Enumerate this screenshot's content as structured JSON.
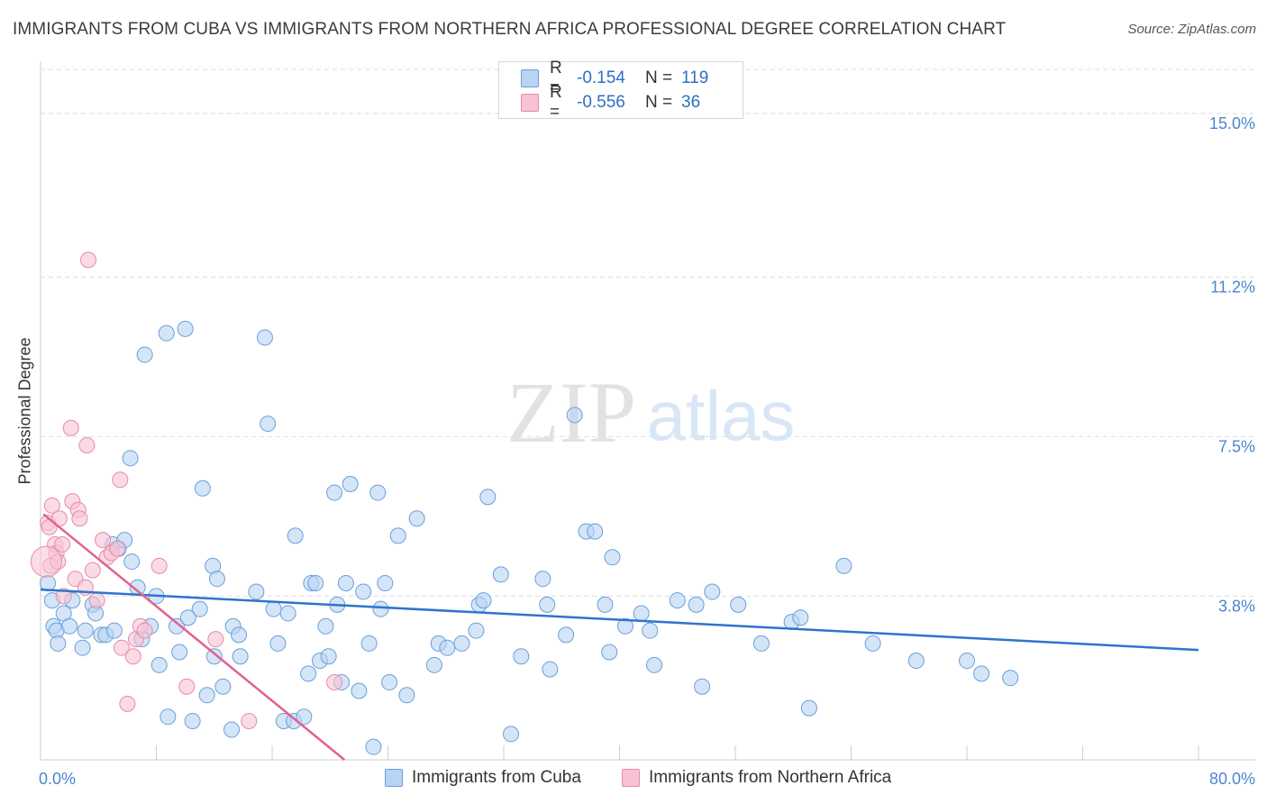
{
  "title": "IMMIGRANTS FROM CUBA VS IMMIGRANTS FROM NORTHERN AFRICA PROFESSIONAL DEGREE CORRELATION CHART",
  "source": "Source: ZipAtlas.com",
  "watermark": {
    "zip": "ZIP",
    "atlas": "atlas"
  },
  "colors": {
    "blue_fill": "#b8d3f3",
    "blue_stroke": "#6a9fd9",
    "blue_line": "#2f74cc",
    "pink_fill": "#f7c3d3",
    "pink_stroke": "#e68aa9",
    "pink_line": "#e0628f",
    "grid": "#dedede",
    "tick_text": "#4a86d0"
  },
  "legend_top": {
    "rows": [
      {
        "r_label": "R =",
        "r_value": "-0.154",
        "n_label": "N =",
        "n_value": "119"
      },
      {
        "r_label": "R =",
        "r_value": "-0.556",
        "n_label": "N =",
        "n_value": "36"
      }
    ]
  },
  "legend_bottom": [
    "Immigrants from Cuba",
    "Immigrants from Northern Africa"
  ],
  "chart_data": {
    "type": "scatter",
    "title": "IMMIGRANTS FROM CUBA VS IMMIGRANTS FROM NORTHERN AFRICA PROFESSIONAL DEGREE CORRELATION CHART",
    "xlabel": "",
    "ylabel": "Professional Degree",
    "xlim": [
      0,
      80
    ],
    "ylim": [
      0,
      16
    ],
    "x_tick_labels": [
      "0.0%",
      "80.0%"
    ],
    "y_ticks": [
      3.8,
      7.5,
      11.2,
      15.0
    ],
    "y_tick_labels": [
      "3.8%",
      "7.5%",
      "11.2%",
      "15.0%"
    ],
    "grid": true,
    "series": [
      {
        "name": "Immigrants from Cuba",
        "color": "#6a9fd9",
        "trend": {
          "x": [
            0,
            80
          ],
          "y": [
            3.95,
            2.55
          ]
        },
        "points": [
          [
            0.5,
            4.1
          ],
          [
            0.8,
            3.7
          ],
          [
            0.9,
            3.1
          ],
          [
            1.1,
            3.0
          ],
          [
            1.2,
            2.7
          ],
          [
            1.6,
            3.4
          ],
          [
            2.0,
            3.1
          ],
          [
            2.2,
            3.7
          ],
          [
            2.9,
            2.6
          ],
          [
            3.1,
            3.0
          ],
          [
            3.6,
            3.6
          ],
          [
            3.8,
            3.4
          ],
          [
            4.2,
            2.9
          ],
          [
            4.5,
            2.9
          ],
          [
            5.0,
            5.0
          ],
          [
            5.1,
            3.0
          ],
          [
            5.4,
            4.9
          ],
          [
            5.8,
            5.1
          ],
          [
            6.2,
            7.0
          ],
          [
            6.3,
            4.6
          ],
          [
            6.7,
            4.0
          ],
          [
            7.0,
            2.8
          ],
          [
            7.2,
            9.4
          ],
          [
            7.6,
            3.1
          ],
          [
            8.0,
            3.8
          ],
          [
            8.2,
            2.2
          ],
          [
            8.7,
            9.9
          ],
          [
            8.8,
            1.0
          ],
          [
            9.4,
            3.1
          ],
          [
            9.6,
            2.5
          ],
          [
            10.0,
            10.0
          ],
          [
            10.2,
            3.3
          ],
          [
            10.5,
            0.9
          ],
          [
            11.0,
            3.5
          ],
          [
            11.2,
            6.3
          ],
          [
            11.5,
            1.5
          ],
          [
            11.9,
            4.5
          ],
          [
            12.0,
            2.4
          ],
          [
            12.2,
            4.2
          ],
          [
            12.6,
            1.7
          ],
          [
            13.2,
            0.7
          ],
          [
            13.3,
            3.1
          ],
          [
            13.7,
            2.9
          ],
          [
            13.8,
            2.4
          ],
          [
            14.9,
            3.9
          ],
          [
            15.5,
            9.8
          ],
          [
            15.7,
            7.8
          ],
          [
            16.1,
            3.5
          ],
          [
            16.4,
            2.7
          ],
          [
            16.8,
            0.9
          ],
          [
            17.1,
            3.4
          ],
          [
            17.5,
            0.9
          ],
          [
            17.6,
            5.2
          ],
          [
            18.2,
            1.0
          ],
          [
            18.5,
            2.0
          ],
          [
            18.7,
            4.1
          ],
          [
            19.0,
            4.1
          ],
          [
            19.3,
            2.3
          ],
          [
            19.7,
            3.1
          ],
          [
            19.9,
            2.4
          ],
          [
            20.3,
            6.2
          ],
          [
            20.5,
            3.6
          ],
          [
            20.8,
            1.8
          ],
          [
            21.1,
            4.1
          ],
          [
            21.4,
            6.4
          ],
          [
            22.0,
            1.6
          ],
          [
            22.3,
            3.9
          ],
          [
            22.7,
            2.7
          ],
          [
            23.0,
            0.3
          ],
          [
            23.3,
            6.2
          ],
          [
            23.5,
            3.5
          ],
          [
            23.8,
            4.1
          ],
          [
            24.1,
            1.8
          ],
          [
            24.7,
            5.2
          ],
          [
            25.3,
            1.5
          ],
          [
            26.0,
            5.6
          ],
          [
            27.2,
            2.2
          ],
          [
            27.5,
            2.7
          ],
          [
            28.1,
            2.6
          ],
          [
            29.1,
            2.7
          ],
          [
            30.1,
            3.0
          ],
          [
            30.3,
            3.6
          ],
          [
            30.6,
            3.7
          ],
          [
            30.9,
            6.1
          ],
          [
            31.8,
            4.3
          ],
          [
            32.5,
            0.6
          ],
          [
            33.2,
            2.4
          ],
          [
            34.7,
            4.2
          ],
          [
            35.0,
            3.6
          ],
          [
            35.2,
            2.1
          ],
          [
            36.3,
            2.9
          ],
          [
            36.9,
            8.0
          ],
          [
            37.7,
            5.3
          ],
          [
            38.3,
            5.3
          ],
          [
            39.0,
            3.6
          ],
          [
            39.3,
            2.5
          ],
          [
            39.5,
            4.7
          ],
          [
            40.4,
            3.1
          ],
          [
            41.5,
            3.4
          ],
          [
            42.1,
            3.0
          ],
          [
            42.4,
            2.2
          ],
          [
            44.0,
            3.7
          ],
          [
            45.3,
            3.6
          ],
          [
            45.7,
            1.7
          ],
          [
            46.4,
            3.9
          ],
          [
            48.2,
            3.6
          ],
          [
            49.8,
            2.7
          ],
          [
            51.9,
            3.2
          ],
          [
            52.5,
            3.3
          ],
          [
            53.1,
            1.2
          ],
          [
            55.5,
            4.5
          ],
          [
            57.5,
            2.7
          ],
          [
            60.5,
            2.3
          ],
          [
            64.0,
            2.3
          ],
          [
            65.0,
            2.0
          ],
          [
            67.0,
            1.9
          ]
        ]
      },
      {
        "name": "Immigrants from Northern Africa",
        "color": "#e68aa9",
        "trend": {
          "x": [
            0.2,
            21.0
          ],
          "y": [
            5.7,
            0.0
          ]
        },
        "points": [
          [
            0.5,
            5.5
          ],
          [
            0.6,
            5.4
          ],
          [
            0.7,
            4.5
          ],
          [
            0.8,
            5.9
          ],
          [
            1.0,
            5.0
          ],
          [
            1.1,
            4.8
          ],
          [
            1.2,
            4.6
          ],
          [
            1.3,
            5.6
          ],
          [
            1.5,
            5.0
          ],
          [
            1.6,
            3.8
          ],
          [
            2.1,
            7.7
          ],
          [
            2.2,
            6.0
          ],
          [
            2.4,
            4.2
          ],
          [
            2.6,
            5.8
          ],
          [
            2.7,
            5.6
          ],
          [
            3.1,
            4.0
          ],
          [
            3.2,
            7.3
          ],
          [
            3.3,
            11.6
          ],
          [
            3.6,
            4.4
          ],
          [
            3.9,
            3.7
          ],
          [
            4.3,
            5.1
          ],
          [
            4.6,
            4.7
          ],
          [
            4.9,
            4.8
          ],
          [
            5.3,
            4.9
          ],
          [
            5.5,
            6.5
          ],
          [
            5.6,
            2.6
          ],
          [
            6.0,
            1.3
          ],
          [
            6.4,
            2.4
          ],
          [
            6.6,
            2.8
          ],
          [
            6.9,
            3.1
          ],
          [
            7.2,
            3.0
          ],
          [
            8.2,
            4.5
          ],
          [
            10.1,
            1.7
          ],
          [
            12.1,
            2.8
          ],
          [
            14.4,
            0.9
          ],
          [
            20.3,
            1.8
          ]
        ]
      }
    ]
  }
}
